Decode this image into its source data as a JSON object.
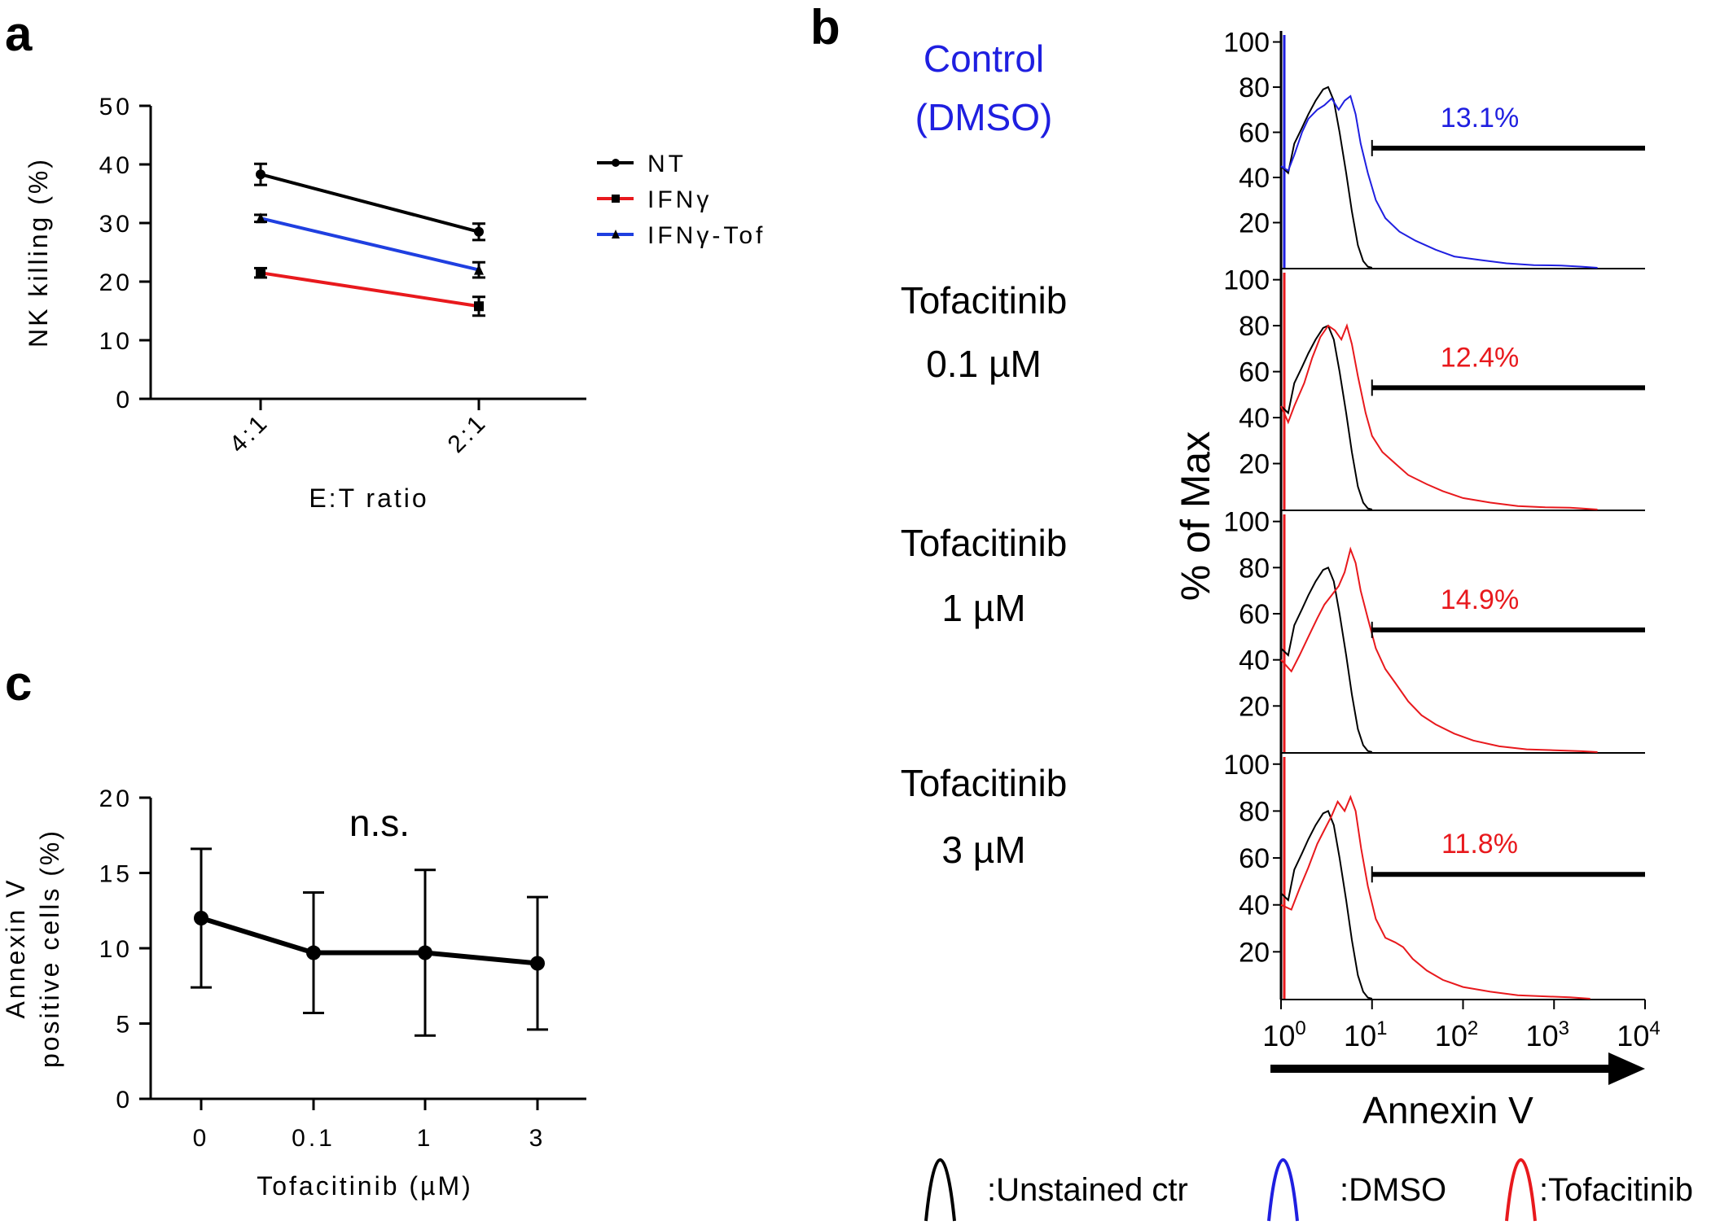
{
  "panels": {
    "a": "a",
    "b": "b",
    "c": "c"
  },
  "chart_data": [
    {
      "panel": "a",
      "type": "line",
      "xlabel": "E:T ratio",
      "ylabel": "NK killing (%)",
      "categories": [
        "4:1",
        "2:1"
      ],
      "yticks": [
        "0",
        "10",
        "20",
        "30",
        "40",
        "50"
      ],
      "ylim": [
        0,
        50
      ],
      "legend_position": "right",
      "series": [
        {
          "name": "NT",
          "color": "#000000",
          "marker": "circle",
          "values": [
            38.3,
            28.5
          ],
          "errors": [
            1.8,
            1.4
          ]
        },
        {
          "name": "IFNγ",
          "color": "#e8191d",
          "marker": "square",
          "values": [
            21.5,
            15.8
          ],
          "errors": [
            0.8,
            1.6
          ]
        },
        {
          "name": "IFNγ-Tof",
          "color": "#1f3fe0",
          "marker": "triangle",
          "values": [
            30.8,
            22.0
          ],
          "errors": [
            0.6,
            1.3
          ]
        }
      ]
    },
    {
      "panel": "b",
      "type": "line",
      "ylabel": "% of Max",
      "xlabel": "Annexin V",
      "xscale": "log",
      "xlim": [
        1,
        10000
      ],
      "yticks": [
        "20",
        "40",
        "60",
        "80",
        "100"
      ],
      "xtick_base": "10",
      "xtick_exponents": [
        "0",
        "1",
        "2",
        "3",
        "4"
      ],
      "gate_range": [
        10,
        10000
      ],
      "histograms": [
        {
          "label_line1": "Control",
          "label_line2": "(DMSO)",
          "label_color": "#1f1fe0",
          "percent": "13.1%",
          "percent_color": "#1f1fe0",
          "sample_color": "#1f1fe0"
        },
        {
          "label_line1": "Tofacitinib",
          "label_line2": "0.1 µM",
          "label_color": "#000000",
          "percent": "12.4%",
          "percent_color": "#e8191d",
          "sample_color": "#e8191d"
        },
        {
          "label_line1": "Tofacitinib",
          "label_line2": "1 µM",
          "label_color": "#000000",
          "percent": "14.9%",
          "percent_color": "#e8191d",
          "sample_color": "#e8191d"
        },
        {
          "label_line1": "Tofacitinib",
          "label_line2": "3 µM",
          "label_color": "#000000",
          "percent": "11.8%",
          "percent_color": "#e8191d",
          "sample_color": "#e8191d"
        }
      ],
      "legend": [
        {
          "label": ":Unstained ctr",
          "color": "#000000"
        },
        {
          "label": ":DMSO",
          "color": "#1f1fe0"
        },
        {
          "label": ":Tofacitinib",
          "color": "#e8191d"
        }
      ]
    },
    {
      "panel": "c",
      "type": "line",
      "xlabel": "Tofacitinib (µM)",
      "ylabel_line1": "Annexin V",
      "ylabel_line2": "positive cells (%)",
      "categories": [
        "0",
        "0.1",
        "1",
        "3"
      ],
      "yticks": [
        "0",
        "5",
        "10",
        "15",
        "20"
      ],
      "ylim": [
        0,
        20
      ],
      "annotation": "n.s.",
      "series": [
        {
          "color": "#000000",
          "values": [
            12.0,
            9.7,
            9.7,
            9.0
          ],
          "errors": [
            4.6,
            4.0,
            5.5,
            4.4
          ]
        }
      ]
    }
  ]
}
